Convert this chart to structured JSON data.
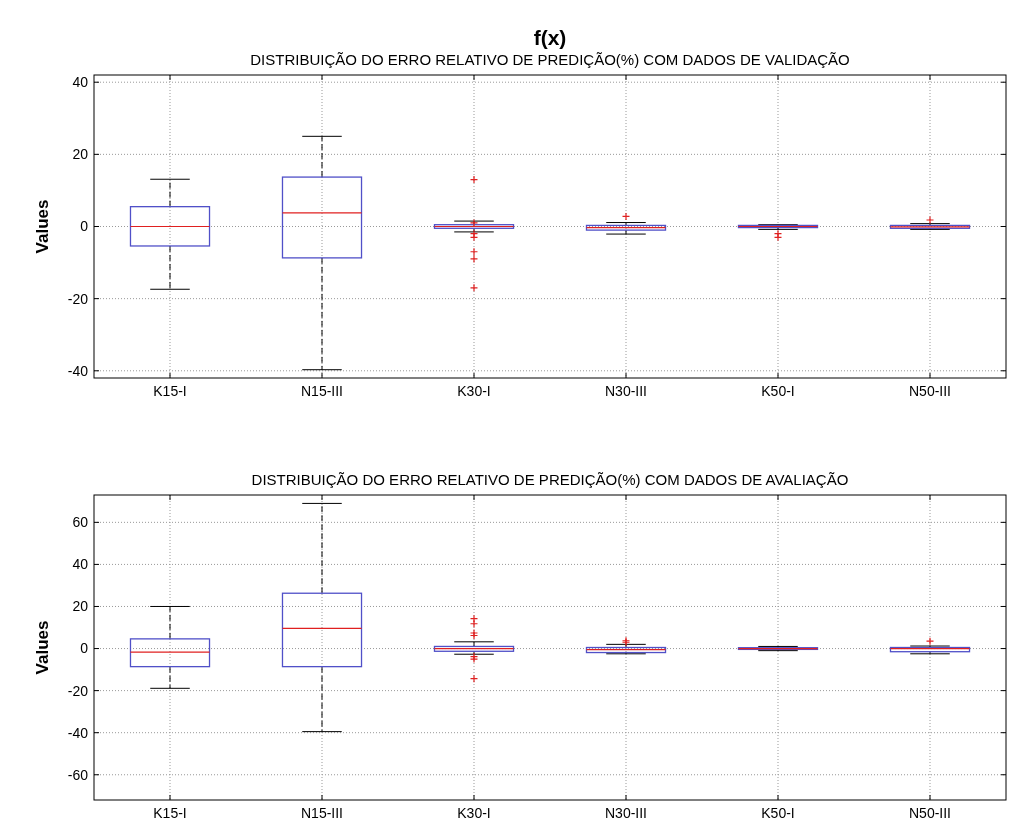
{
  "chart_data": [
    {
      "type": "box",
      "title": "f(x)",
      "subtitle": "DISTRIBUIÇÃO DO ERRO RELATIVO DE PREDIÇÃO(%) COM DADOS DE VALIDAÇÃO",
      "ylabel": "Values",
      "categories": [
        "K15-I",
        "N15-III",
        "K30-I",
        "N30-III",
        "K50-I",
        "N50-III"
      ],
      "ylim": [
        -42,
        42
      ],
      "yticks": [
        -40,
        -20,
        0,
        20,
        40
      ],
      "grid": true,
      "marker": "cross",
      "series": [
        {
          "color": "#5050c8",
          "boxes": [
            {
              "low": -17.4,
              "q1": -5.4,
              "median": 0,
              "q3": 5.5,
              "high": 13.1
            },
            {
              "low": -39.7,
              "q1": -8.7,
              "median": 3.8,
              "q3": 13.7,
              "high": 25
            },
            {
              "low": -1.5,
              "q1": -0.5,
              "median": 0,
              "q3": 0.5,
              "high": 1.5,
              "outliers": [
                13,
                1,
                -2,
                -3,
                -7,
                -9,
                -17
              ]
            },
            {
              "low": -2.1,
              "q1": -1,
              "median": -0.3,
              "q3": 0.3,
              "high": 1.1,
              "outliers": [
                2.8
              ]
            },
            {
              "low": -0.8,
              "q1": -0.3,
              "median": 0,
              "q3": 0.3,
              "high": 0.5,
              "outliers": [
                -2,
                -3
              ]
            },
            {
              "low": -0.8,
              "q1": -0.5,
              "median": -0.1,
              "q3": 0.3,
              "high": 0.8,
              "outliers": [
                1.8
              ]
            }
          ]
        }
      ]
    },
    {
      "type": "box",
      "title": "DISTRIBUIÇÃO DO ERRO RELATIVO DE PREDIÇÃO(%) COM DADOS DE AVALIAÇÃO",
      "ylabel": "Values",
      "categories": [
        "K15-I",
        "N15-III",
        "K30-I",
        "N30-III",
        "K50-I",
        "N50-III"
      ],
      "ylim": [
        -72,
        73
      ],
      "yticks": [
        -60,
        -40,
        -20,
        0,
        20,
        40,
        60
      ],
      "grid": true,
      "marker": "cross",
      "series": [
        {
          "color": "#5050c8",
          "boxes": [
            {
              "low": -18.9,
              "q1": -8.6,
              "median": -1.7,
              "q3": 4.6,
              "high": 20
            },
            {
              "low": -39.5,
              "q1": -8.6,
              "median": 9.6,
              "q3": 26.3,
              "high": 69
            },
            {
              "low": -2.7,
              "q1": -1.3,
              "median": 0,
              "q3": 1,
              "high": 3.2,
              "outliers": [
                14.2,
                11.8,
                7.4,
                6.2,
                -3.8,
                -5,
                -14.3
              ]
            },
            {
              "low": -2.5,
              "q1": -1.9,
              "median": -0.5,
              "q3": 0.5,
              "high": 2,
              "outliers": [
                3,
                3.7
              ]
            },
            {
              "low": -1,
              "q1": -0.4,
              "median": 0,
              "q3": 0.4,
              "high": 1
            },
            {
              "low": -2.5,
              "q1": -1.5,
              "median": 0,
              "q3": 0.5,
              "high": 1.2,
              "outliers": [
                3.5
              ]
            }
          ]
        }
      ]
    }
  ]
}
